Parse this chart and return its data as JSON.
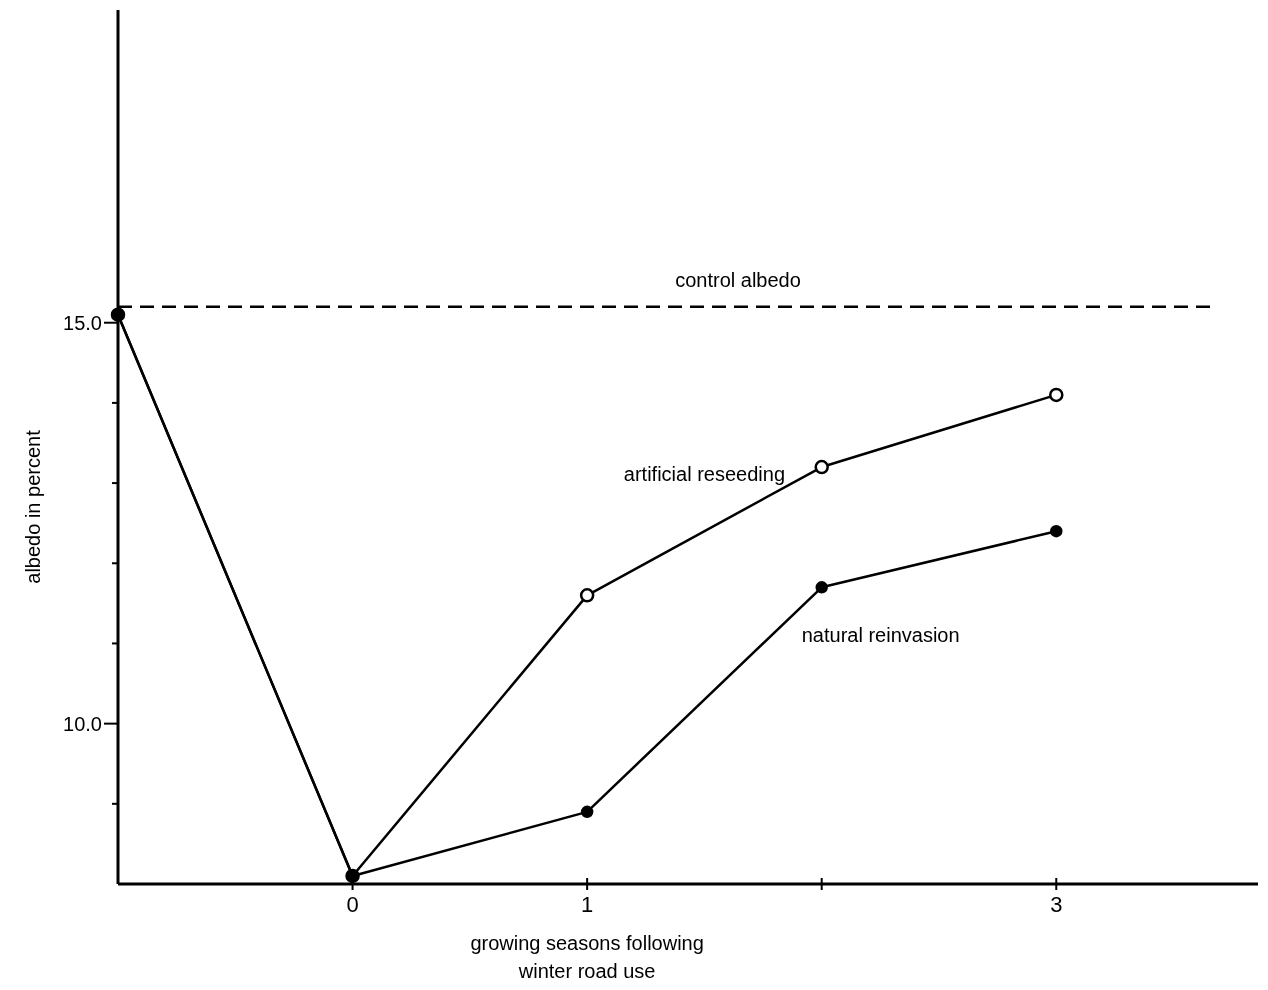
{
  "chart_data": {
    "type": "line",
    "xlabel": "growing seasons following\nwinter road use",
    "ylabel": "albedo in percent",
    "xlim": [
      -1,
      3.86
    ],
    "ylim": [
      8.0,
      18.9
    ],
    "xticks": [
      0,
      1,
      {
        "value": 2,
        "label": null
      },
      3
    ],
    "yticks": [
      {
        "value": 9,
        "label": null
      },
      {
        "value": 10,
        "label": "10.0"
      },
      {
        "value": 11,
        "label": null
      },
      {
        "value": 12,
        "label": null
      },
      {
        "value": 13,
        "label": null
      },
      {
        "value": 14,
        "label": null
      },
      {
        "value": 15,
        "label": "15.0"
      }
    ],
    "series": [
      {
        "name": "artificial reseeding",
        "color": "#000000",
        "marker": "circle",
        "x": [
          -1,
          0,
          1,
          2,
          3
        ],
        "values": [
          15.1,
          8.1,
          11.6,
          13.2,
          14.1
        ]
      },
      {
        "name": "natural reinvasion",
        "color": "#000000",
        "marker": "circle",
        "x": [
          -1,
          0,
          1,
          2,
          3
        ],
        "values": [
          15.1,
          8.1,
          8.9,
          11.7,
          12.4
        ]
      }
    ],
    "ref_lines": [
      {
        "axis": "y",
        "value": 15.2,
        "label": "control albedo",
        "line_style": "dashed",
        "color": "#000000"
      }
    ],
    "grid": false,
    "line_style": "solid"
  }
}
